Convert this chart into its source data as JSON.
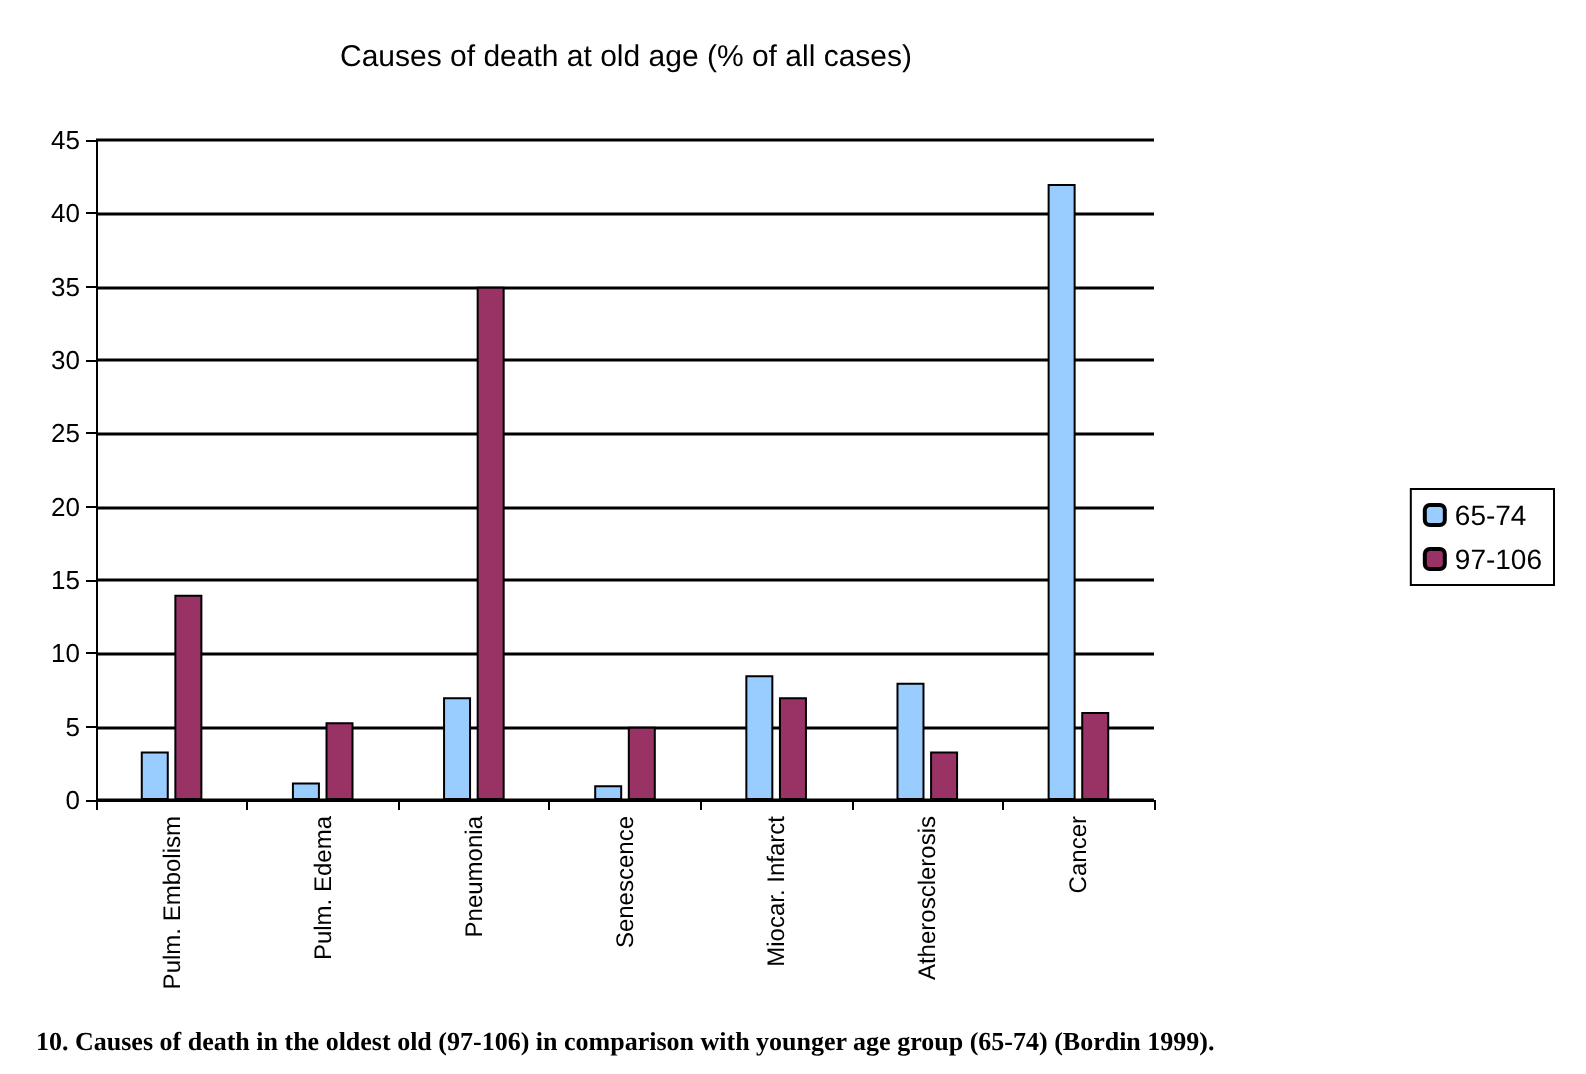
{
  "chart_data": {
    "type": "bar",
    "title": "Causes of death at old age (% of all cases)",
    "categories": [
      "Pulm. Embolism",
      "Pulm. Edema",
      "Pneumonia",
      "Senescence",
      "Miocar. Infarct",
      "Atherosclerosis",
      "Cancer"
    ],
    "series": [
      {
        "name": "65-74",
        "color": "#99ccff",
        "values": [
          3.3,
          1.2,
          7,
          1,
          8.5,
          8,
          42
        ]
      },
      {
        "name": "97-106",
        "color": "#993366",
        "values": [
          14,
          5.3,
          35,
          5,
          7,
          3.3,
          6
        ]
      }
    ],
    "ylim": [
      0,
      45
    ],
    "yticks": [
      0,
      5,
      10,
      15,
      20,
      25,
      30,
      35,
      40,
      45
    ],
    "grid": "y",
    "legend": "right",
    "annotations": [
      "10. Causes of death in the oldest old (97-106) in comparison with younger age group (65-74) (Bordin 1999)."
    ]
  }
}
